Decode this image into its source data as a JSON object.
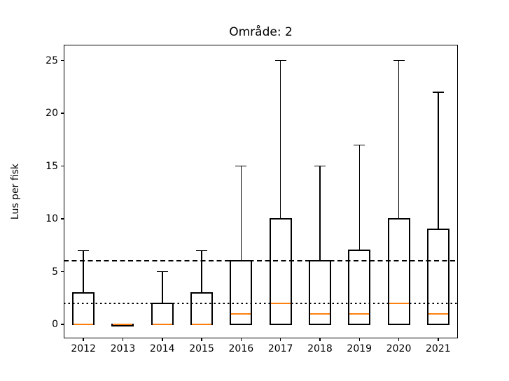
{
  "title": "Område: 2",
  "ylabel": "Lus per fisk",
  "chart_data": {
    "type": "boxplot",
    "title": "Område: 2",
    "xlabel": "",
    "ylabel": "Lus per fisk",
    "categories": [
      "2012",
      "2013",
      "2014",
      "2015",
      "2016",
      "2017",
      "2018",
      "2019",
      "2020",
      "2021"
    ],
    "boxes": [
      {
        "label": "2012",
        "whisker_low": 0,
        "q1": 0,
        "median": 0,
        "q3": 3,
        "whisker_high": 7
      },
      {
        "label": "2013",
        "whisker_low": 0,
        "q1": 0,
        "median": 0,
        "q3": 0,
        "whisker_high": 0
      },
      {
        "label": "2014",
        "whisker_low": 0,
        "q1": 0,
        "median": 0,
        "q3": 2,
        "whisker_high": 5
      },
      {
        "label": "2015",
        "whisker_low": 0,
        "q1": 0,
        "median": 0,
        "q3": 3,
        "whisker_high": 7
      },
      {
        "label": "2016",
        "whisker_low": 0,
        "q1": 0,
        "median": 1,
        "q3": 6,
        "whisker_high": 15
      },
      {
        "label": "2017",
        "whisker_low": 0,
        "q1": 0,
        "median": 2,
        "q3": 10,
        "whisker_high": 25
      },
      {
        "label": "2018",
        "whisker_low": 0,
        "q1": 0,
        "median": 1,
        "q3": 6,
        "whisker_high": 15
      },
      {
        "label": "2019",
        "whisker_low": 0,
        "q1": 0,
        "median": 1,
        "q3": 7,
        "whisker_high": 17
      },
      {
        "label": "2020",
        "whisker_low": 0,
        "q1": 0,
        "median": 2,
        "q3": 10,
        "whisker_high": 25
      },
      {
        "label": "2021",
        "whisker_low": 0,
        "q1": 0,
        "median": 1,
        "q3": 9,
        "whisker_high": 22
      }
    ],
    "yticks": [
      0,
      5,
      10,
      15,
      20,
      25
    ],
    "ylim": [
      -1.32,
      26.5
    ],
    "grid": false,
    "legend": "none",
    "reference_lines": [
      {
        "value": 6,
        "style": "dashed",
        "color": "#000000"
      },
      {
        "value": 2,
        "style": "dotted",
        "color": "#000000"
      }
    ],
    "colors": {
      "box": "#000000",
      "whisker": "#000000",
      "median": "#ff7f0e",
      "background": "#ffffff"
    }
  }
}
